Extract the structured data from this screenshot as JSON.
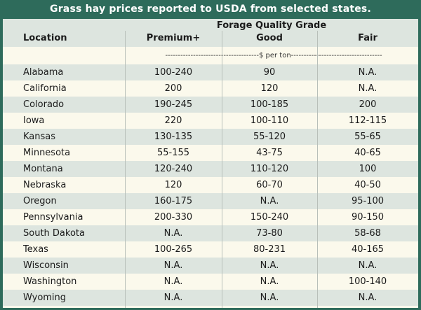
{
  "title": "Grass hay prices reported to USDA from selected states.",
  "header": {
    "group_label": "Forage Quality Grade",
    "columns": [
      "Location",
      "Premium+",
      "Good",
      "Fair"
    ],
    "unit": "-------------------------------------$ per ton------------------------------------"
  },
  "rows": [
    {
      "location": "Alabama",
      "premium": "100-240",
      "good": "90",
      "fair": "N.A."
    },
    {
      "location": "California",
      "premium": "200",
      "good": "120",
      "fair": "N.A."
    },
    {
      "location": "Colorado",
      "premium": "190-245",
      "good": "100-185",
      "fair": "200"
    },
    {
      "location": "Iowa",
      "premium": "220",
      "good": "100-110",
      "fair": "112-115"
    },
    {
      "location": "Kansas",
      "premium": "130-135",
      "good": "55-120",
      "fair": "55-65"
    },
    {
      "location": "Minnesota",
      "premium": "55-155",
      "good": "43-75",
      "fair": "40-65"
    },
    {
      "location": "Montana",
      "premium": "120-240",
      "good": "110-120",
      "fair": "100"
    },
    {
      "location": "Nebraska",
      "premium": "120",
      "good": "60-70",
      "fair": "40-50"
    },
    {
      "location": "Oregon",
      "premium": "160-175",
      "good": "N.A.",
      "fair": "95-100"
    },
    {
      "location": "Pennsylvania",
      "premium": "200-330",
      "good": "150-240",
      "fair": "90-150"
    },
    {
      "location": "South Dakota",
      "premium": "N.A.",
      "good": "73-80",
      "fair": "58-68"
    },
    {
      "location": "Texas",
      "premium": "100-265",
      "good": "80-231",
      "fair": "40-165"
    },
    {
      "location": "Wisconsin",
      "premium": "N.A.",
      "good": "N.A.",
      "fair": "N.A."
    },
    {
      "location": "Washington",
      "premium": "N.A.",
      "good": "N.A.",
      "fair": "100-140"
    },
    {
      "location": "Wyoming",
      "premium": "N.A.",
      "good": "N.A.",
      "fair": "N.A."
    }
  ],
  "colors": {
    "frame": "#2e6b5b",
    "shade": "#dde5df",
    "paper": "#fbf9ec"
  }
}
